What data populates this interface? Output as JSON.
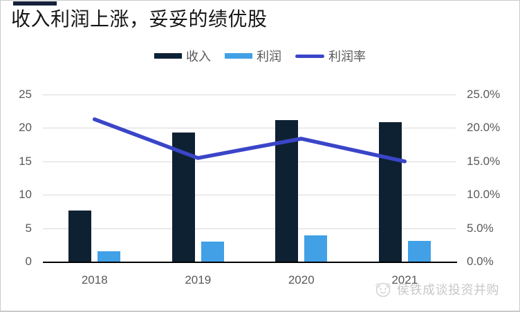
{
  "title": "收入利润上涨，妥妥的绩优股",
  "watermark": {
    "text": "侯铁成谈投资并购"
  },
  "colors": {
    "revenue_bar": "#0e2132",
    "profit_bar": "#41a0e6",
    "margin_line": "#3a45c8",
    "accent_bar": "#16213a",
    "axis_text": "#595959",
    "gridline": "#d9d9d9",
    "baseline": "#000000",
    "watermark_text": "#c8c8c8",
    "frame_border": "#c9c9c9",
    "title_text": "#151515"
  },
  "chart_data": {
    "type": "combo",
    "categories": [
      "2018",
      "2019",
      "2020",
      "2021"
    ],
    "series": [
      {
        "name": "收入",
        "type": "bar",
        "axis": "left",
        "values": [
          7.6,
          19.3,
          21.2,
          20.9
        ]
      },
      {
        "name": "利润",
        "type": "bar",
        "axis": "left",
        "values": [
          1.6,
          3.0,
          3.9,
          3.1
        ]
      },
      {
        "name": "利润率",
        "type": "line",
        "axis": "right",
        "unit": "%",
        "values": [
          21.3,
          15.5,
          18.4,
          15.0
        ]
      }
    ],
    "left_axis": {
      "min": 0,
      "max": 25,
      "tick_values": [
        0,
        5,
        10,
        15,
        20,
        25
      ],
      "tick_labels": [
        "0",
        "5",
        "10",
        "15",
        "20",
        "25"
      ]
    },
    "right_axis": {
      "min": 0,
      "max": 25,
      "unit": "%",
      "tick_values": [
        0,
        5,
        10,
        15,
        20,
        25
      ],
      "tick_labels": [
        "0.0%",
        "5.0%",
        "10.0%",
        "15.0%",
        "20.0%",
        "25.0%"
      ]
    },
    "grid": true,
    "legend_position": "top"
  }
}
